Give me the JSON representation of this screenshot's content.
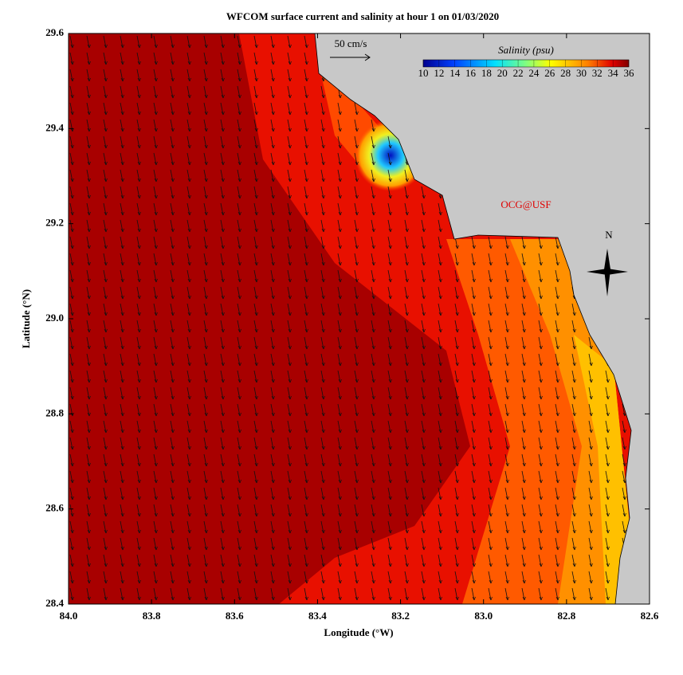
{
  "chart_data": {
    "type": "map",
    "title": "WFCOM surface current and salinity at hour 1 on 01/03/2020",
    "xlabel": "Longitude (°W)",
    "ylabel": "Latitude (°N)",
    "xlim": [
      84.0,
      82.6
    ],
    "ylim": [
      28.4,
      29.6
    ],
    "xticks": [
      {
        "value": 84.0,
        "label": "84.0"
      },
      83.8,
      83.6,
      83.4,
      83.2,
      {
        "value": 83.0,
        "label": "83.0"
      },
      82.8,
      82.6
    ],
    "yticks": [
      28.4,
      28.6,
      28.8,
      {
        "value": 29.0,
        "label": "29.0"
      },
      29.2,
      29.4,
      29.6
    ],
    "colorbar": {
      "title": "Salinity (psu)",
      "lim": [
        10,
        36
      ],
      "ticks": [
        10,
        12,
        14,
        16,
        18,
        20,
        22,
        24,
        26,
        28,
        30,
        32,
        34,
        36
      ]
    },
    "scale_label": "50 cm/s",
    "credit": "OCG@USF",
    "compass": "N"
  }
}
